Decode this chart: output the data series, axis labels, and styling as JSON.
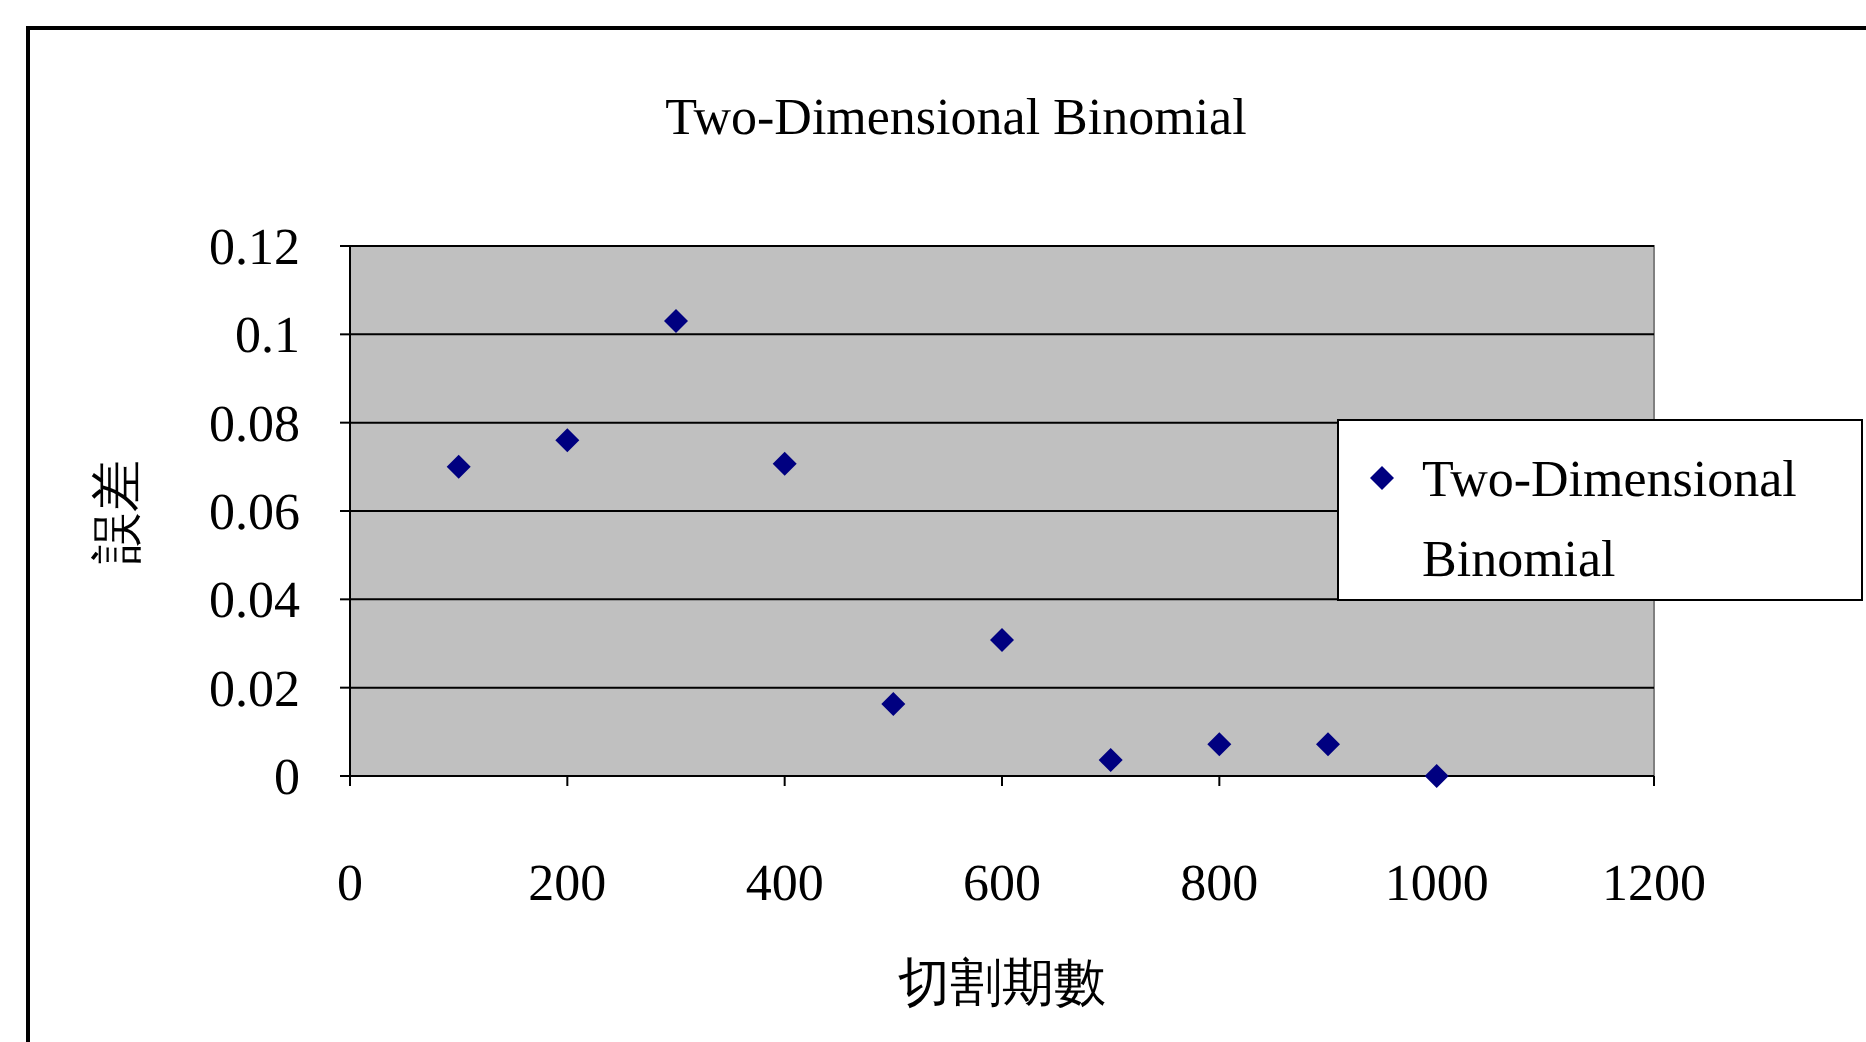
{
  "chart_data": {
    "type": "scatter",
    "title": "Two-Dimensional Binomial",
    "xlabel": "切割期數",
    "ylabel": "誤差",
    "x": [
      100,
      200,
      300,
      400,
      500,
      600,
      700,
      800,
      900,
      1000
    ],
    "series": [
      {
        "name": "Two-Dimensional Binomial",
        "color": "#000080",
        "values": [
          0.07,
          0.076,
          0.103,
          0.0707,
          0.0163,
          0.0308,
          0.0036,
          0.0072,
          0.0072,
          0
        ]
      }
    ],
    "xlim": [
      0,
      1200
    ],
    "xticks": [
      0,
      200,
      400,
      600,
      800,
      1000,
      1200
    ],
    "ylim": [
      0,
      0.12
    ],
    "yticks": [
      0,
      0.02,
      0.04,
      0.06,
      0.08,
      0.1,
      0.12
    ],
    "grid": "y",
    "legend": "right",
    "marker": "diamond"
  }
}
